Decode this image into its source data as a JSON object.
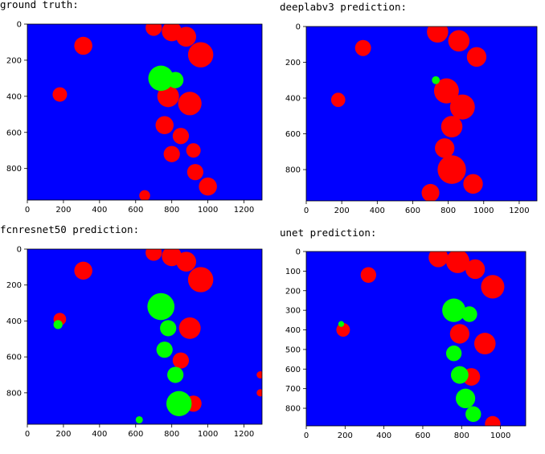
{
  "figure": {
    "background_class_color": "#0000ff",
    "crop_class_color": "#ff0000",
    "weed_class_color": "#00ff00"
  },
  "chart_data": [
    {
      "type": "heatmap",
      "title": "ground truth:",
      "xlim": [
        0,
        1300
      ],
      "ylim": [
        975,
        0
      ],
      "xticks": [
        0,
        200,
        400,
        600,
        800,
        1000,
        1200
      ],
      "yticks": [
        0,
        200,
        400,
        600,
        800
      ],
      "classes": [
        "background",
        "crop",
        "weed"
      ],
      "blobs": [
        {
          "cls": "crop",
          "x": 700,
          "y": 20,
          "r": 45
        },
        {
          "cls": "crop",
          "x": 800,
          "y": 40,
          "r": 55
        },
        {
          "cls": "crop",
          "x": 880,
          "y": 70,
          "r": 55
        },
        {
          "cls": "crop",
          "x": 960,
          "y": 170,
          "r": 70
        },
        {
          "cls": "crop",
          "x": 310,
          "y": 120,
          "r": 50
        },
        {
          "cls": "crop",
          "x": 180,
          "y": 390,
          "r": 40
        },
        {
          "cls": "crop",
          "x": 780,
          "y": 400,
          "r": 60
        },
        {
          "cls": "crop",
          "x": 900,
          "y": 440,
          "r": 65
        },
        {
          "cls": "crop",
          "x": 760,
          "y": 560,
          "r": 50
        },
        {
          "cls": "crop",
          "x": 850,
          "y": 620,
          "r": 45
        },
        {
          "cls": "crop",
          "x": 800,
          "y": 720,
          "r": 45
        },
        {
          "cls": "crop",
          "x": 920,
          "y": 700,
          "r": 40
        },
        {
          "cls": "crop",
          "x": 930,
          "y": 820,
          "r": 45
        },
        {
          "cls": "crop",
          "x": 1000,
          "y": 900,
          "r": 50
        },
        {
          "cls": "crop",
          "x": 650,
          "y": 950,
          "r": 30
        },
        {
          "cls": "weed",
          "x": 740,
          "y": 300,
          "r": 70
        },
        {
          "cls": "weed",
          "x": 820,
          "y": 310,
          "r": 45
        }
      ]
    },
    {
      "type": "heatmap",
      "title": "deeplabv3 prediction:",
      "xlim": [
        0,
        1300
      ],
      "ylim": [
        975,
        0
      ],
      "xticks": [
        0,
        200,
        400,
        600,
        800,
        1000,
        1200
      ],
      "yticks": [
        0,
        200,
        400,
        600,
        800
      ],
      "classes": [
        "background",
        "crop",
        "weed"
      ],
      "blobs": [
        {
          "cls": "crop",
          "x": 740,
          "y": 30,
          "r": 60
        },
        {
          "cls": "crop",
          "x": 860,
          "y": 80,
          "r": 60
        },
        {
          "cls": "crop",
          "x": 960,
          "y": 170,
          "r": 55
        },
        {
          "cls": "crop",
          "x": 320,
          "y": 120,
          "r": 45
        },
        {
          "cls": "crop",
          "x": 180,
          "y": 410,
          "r": 40
        },
        {
          "cls": "crop",
          "x": 790,
          "y": 360,
          "r": 70
        },
        {
          "cls": "crop",
          "x": 880,
          "y": 450,
          "r": 70
        },
        {
          "cls": "crop",
          "x": 820,
          "y": 560,
          "r": 60
        },
        {
          "cls": "crop",
          "x": 780,
          "y": 680,
          "r": 55
        },
        {
          "cls": "crop",
          "x": 820,
          "y": 800,
          "r": 80
        },
        {
          "cls": "crop",
          "x": 940,
          "y": 880,
          "r": 55
        },
        {
          "cls": "crop",
          "x": 700,
          "y": 930,
          "r": 50
        },
        {
          "cls": "weed",
          "x": 730,
          "y": 300,
          "r": 22
        }
      ]
    },
    {
      "type": "heatmap",
      "title": "fcnresnet50 prediction:",
      "xlim": [
        0,
        1300
      ],
      "ylim": [
        975,
        0
      ],
      "xticks": [
        0,
        200,
        400,
        600,
        800,
        1000,
        1200
      ],
      "yticks": [
        0,
        200,
        400,
        600,
        800
      ],
      "classes": [
        "background",
        "crop",
        "weed"
      ],
      "blobs": [
        {
          "cls": "crop",
          "x": 700,
          "y": 20,
          "r": 45
        },
        {
          "cls": "crop",
          "x": 800,
          "y": 40,
          "r": 55
        },
        {
          "cls": "crop",
          "x": 880,
          "y": 70,
          "r": 55
        },
        {
          "cls": "crop",
          "x": 960,
          "y": 170,
          "r": 70
        },
        {
          "cls": "crop",
          "x": 310,
          "y": 120,
          "r": 50
        },
        {
          "cls": "crop",
          "x": 180,
          "y": 390,
          "r": 35
        },
        {
          "cls": "crop",
          "x": 900,
          "y": 440,
          "r": 60
        },
        {
          "cls": "crop",
          "x": 850,
          "y": 620,
          "r": 45
        },
        {
          "cls": "crop",
          "x": 920,
          "y": 860,
          "r": 45
        },
        {
          "cls": "crop",
          "x": 1290,
          "y": 700,
          "r": 20
        },
        {
          "cls": "crop",
          "x": 1290,
          "y": 800,
          "r": 20
        },
        {
          "cls": "weed",
          "x": 740,
          "y": 320,
          "r": 75
        },
        {
          "cls": "weed",
          "x": 780,
          "y": 440,
          "r": 45
        },
        {
          "cls": "weed",
          "x": 760,
          "y": 560,
          "r": 45
        },
        {
          "cls": "weed",
          "x": 820,
          "y": 700,
          "r": 45
        },
        {
          "cls": "weed",
          "x": 840,
          "y": 860,
          "r": 70
        },
        {
          "cls": "weed",
          "x": 170,
          "y": 420,
          "r": 25
        },
        {
          "cls": "weed",
          "x": 620,
          "y": 950,
          "r": 20
        }
      ]
    },
    {
      "type": "heatmap",
      "title": "unet prediction:",
      "xlim": [
        0,
        1130
      ],
      "ylim": [
        890,
        0
      ],
      "xticks": [
        0,
        200,
        400,
        600,
        800,
        1000
      ],
      "yticks": [
        0,
        100,
        200,
        300,
        400,
        500,
        600,
        700,
        800
      ],
      "classes": [
        "background",
        "crop",
        "weed"
      ],
      "blobs": [
        {
          "cls": "crop",
          "x": 680,
          "y": 30,
          "r": 50
        },
        {
          "cls": "crop",
          "x": 780,
          "y": 50,
          "r": 60
        },
        {
          "cls": "crop",
          "x": 870,
          "y": 90,
          "r": 50
        },
        {
          "cls": "crop",
          "x": 960,
          "y": 180,
          "r": 60
        },
        {
          "cls": "crop",
          "x": 320,
          "y": 120,
          "r": 40
        },
        {
          "cls": "crop",
          "x": 190,
          "y": 400,
          "r": 35
        },
        {
          "cls": "crop",
          "x": 790,
          "y": 420,
          "r": 50
        },
        {
          "cls": "crop",
          "x": 920,
          "y": 470,
          "r": 55
        },
        {
          "cls": "crop",
          "x": 850,
          "y": 640,
          "r": 45
        },
        {
          "cls": "crop",
          "x": 960,
          "y": 880,
          "r": 40
        },
        {
          "cls": "weed",
          "x": 760,
          "y": 300,
          "r": 60
        },
        {
          "cls": "weed",
          "x": 840,
          "y": 320,
          "r": 40
        },
        {
          "cls": "weed",
          "x": 760,
          "y": 520,
          "r": 40
        },
        {
          "cls": "weed",
          "x": 790,
          "y": 630,
          "r": 45
        },
        {
          "cls": "weed",
          "x": 820,
          "y": 750,
          "r": 50
        },
        {
          "cls": "weed",
          "x": 860,
          "y": 830,
          "r": 40
        },
        {
          "cls": "weed",
          "x": 180,
          "y": 370,
          "r": 15
        }
      ]
    }
  ]
}
